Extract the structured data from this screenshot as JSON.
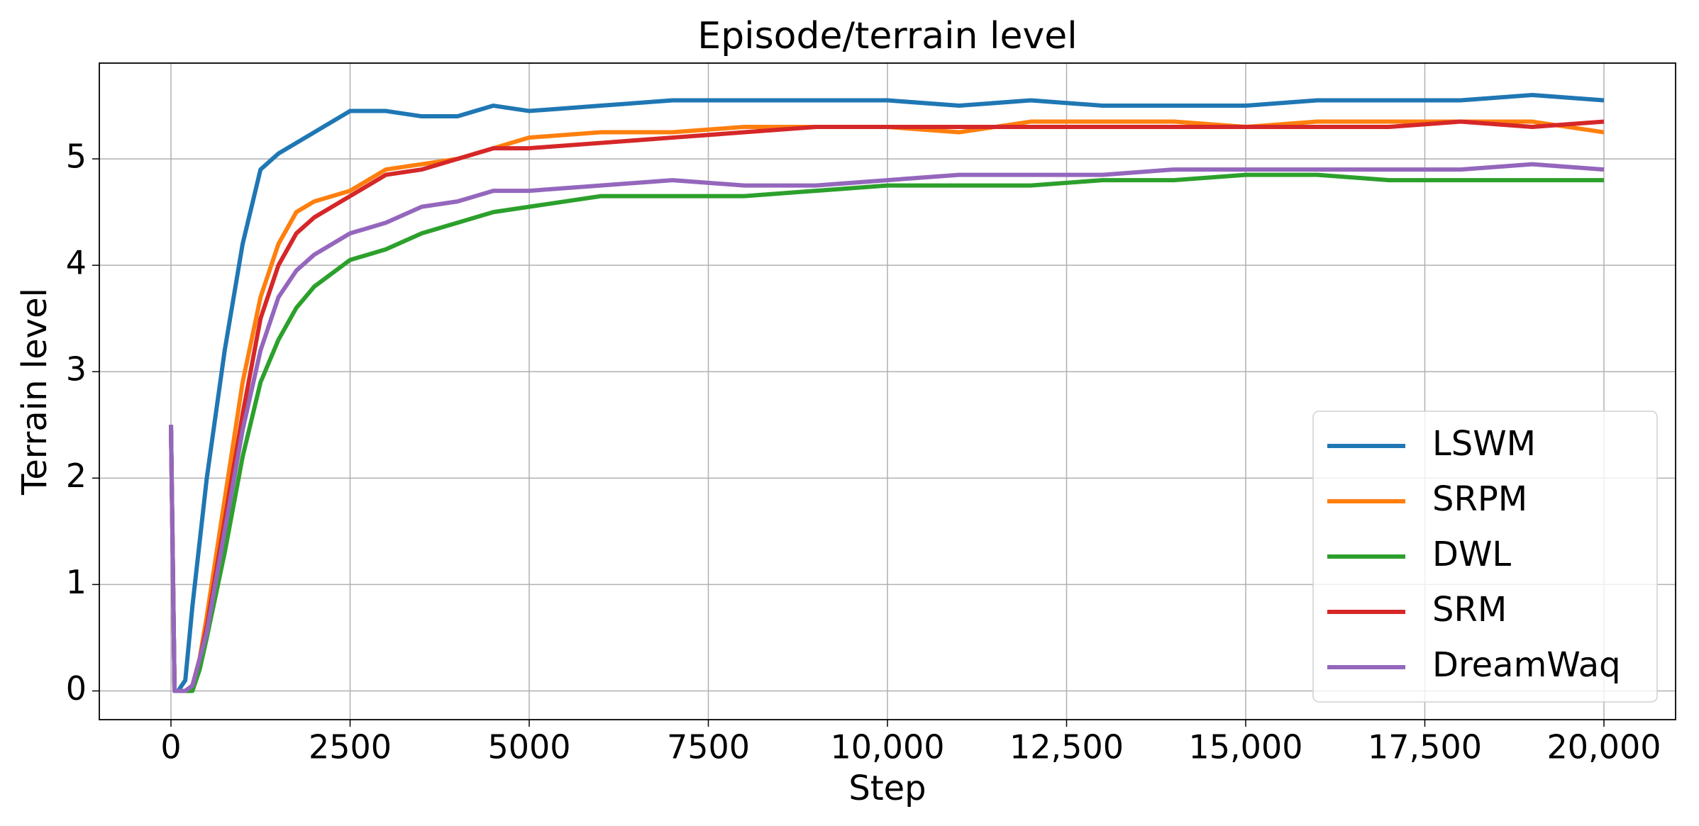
{
  "chart_data": {
    "type": "line",
    "title": "Episode/terrain level",
    "x_label": "Step",
    "y_label": "Terrain level",
    "x": [
      0,
      50,
      100,
      200,
      300,
      400,
      500,
      750,
      1000,
      1250,
      1500,
      1750,
      2000,
      2500,
      3000,
      3500,
      4000,
      4500,
      5000,
      6000,
      7000,
      8000,
      9000,
      10000,
      11000,
      12000,
      13000,
      14000,
      15000,
      16000,
      17000,
      18000,
      19000,
      20000
    ],
    "series": [
      {
        "name": "LSWM",
        "color": "#1f77b4",
        "values": [
          2.5,
          0,
          0,
          0.1,
          0.8,
          1.4,
          2.0,
          3.2,
          4.2,
          4.9,
          5.05,
          5.15,
          5.25,
          5.45,
          5.45,
          5.4,
          5.4,
          5.5,
          5.45,
          5.5,
          5.55,
          5.55,
          5.55,
          5.55,
          5.5,
          5.55,
          5.5,
          5.5,
          5.5,
          5.55,
          5.55,
          5.55,
          5.6,
          5.55
        ]
      },
      {
        "name": "SRPM",
        "color": "#ff7f0e",
        "values": [
          2.5,
          0,
          0,
          0,
          0.05,
          0.3,
          0.7,
          1.8,
          2.9,
          3.7,
          4.2,
          4.5,
          4.6,
          4.7,
          4.9,
          4.95,
          5.0,
          5.1,
          5.2,
          5.25,
          5.25,
          5.3,
          5.3,
          5.3,
          5.25,
          5.35,
          5.35,
          5.35,
          5.3,
          5.35,
          5.35,
          5.35,
          5.35,
          5.25
        ]
      },
      {
        "name": "DWL",
        "color": "#2ca02c",
        "values": [
          2.5,
          0,
          0,
          0,
          0,
          0.2,
          0.5,
          1.3,
          2.2,
          2.9,
          3.3,
          3.6,
          3.8,
          4.05,
          4.15,
          4.3,
          4.4,
          4.5,
          4.55,
          4.65,
          4.65,
          4.65,
          4.7,
          4.75,
          4.75,
          4.75,
          4.8,
          4.8,
          4.85,
          4.85,
          4.8,
          4.8,
          4.8,
          4.8
        ]
      },
      {
        "name": "SRM",
        "color": "#d62728",
        "values": [
          2.5,
          0,
          0,
          0,
          0.05,
          0.3,
          0.6,
          1.6,
          2.6,
          3.5,
          4.0,
          4.3,
          4.45,
          4.65,
          4.85,
          4.9,
          5.0,
          5.1,
          5.1,
          5.15,
          5.2,
          5.25,
          5.3,
          5.3,
          5.3,
          5.3,
          5.3,
          5.3,
          5.3,
          5.3,
          5.3,
          5.35,
          5.3,
          5.35
        ]
      },
      {
        "name": "DreamWaq",
        "color": "#9467bd",
        "values": [
          2.5,
          0,
          0,
          0,
          0.05,
          0.3,
          0.55,
          1.5,
          2.45,
          3.2,
          3.7,
          3.95,
          4.1,
          4.3,
          4.4,
          4.55,
          4.6,
          4.7,
          4.7,
          4.75,
          4.8,
          4.75,
          4.75,
          4.8,
          4.85,
          4.85,
          4.85,
          4.9,
          4.9,
          4.9,
          4.9,
          4.9,
          4.95,
          4.9
        ]
      }
    ],
    "xlim": [
      -1000,
      21000
    ],
    "ylim": [
      -0.27,
      5.9
    ],
    "xticks": [
      0,
      2500,
      5000,
      7500,
      {
        "value": 10000,
        "label": "10,000"
      },
      {
        "value": 12500,
        "label": "12,500"
      },
      {
        "value": 15000,
        "label": "15,000"
      },
      {
        "value": 17500,
        "label": "17,500"
      },
      {
        "value": 20000,
        "label": "20,000"
      }
    ],
    "yticks": [
      0,
      1,
      2,
      3,
      4,
      5
    ],
    "grid": true,
    "legend_position": "lower right"
  }
}
